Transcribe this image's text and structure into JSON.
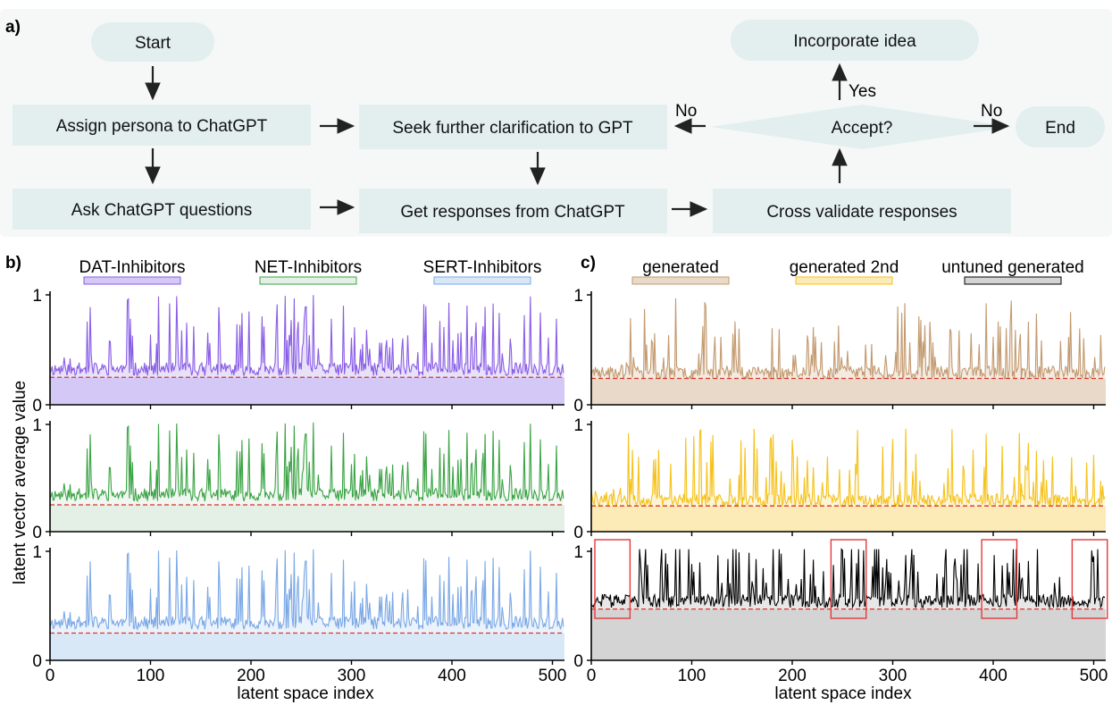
{
  "panel_labels": {
    "a": "a)",
    "b": "b)",
    "c": "c)"
  },
  "flowchart": {
    "start": "Start",
    "assign": "Assign persona to ChatGPT",
    "ask": "Ask ChatGPT questions",
    "seek": "Seek further clarification to GPT",
    "get": "Get responses from ChatGPT",
    "cross": "Cross validate responses",
    "accept": "Accept?",
    "incorporate": "Incorporate idea",
    "end": "End",
    "yes_label": "Yes",
    "no_left_label": "No",
    "no_right_label": "No"
  },
  "colors": {
    "flow_box": "#e3efef",
    "DAT": "#8a5de6",
    "NET": "#3aa444",
    "SERT": "#7aa8e6",
    "generated": "#c39a6f",
    "generated2": "#f5c21b",
    "untuned": "#000000",
    "threshold": "#d9342b",
    "highlight_box": "#e5383b"
  },
  "shared_labels": {
    "ylabel": "latent vector average value",
    "xlabel_b": "latent space index",
    "xlabel_c": "latent space index"
  },
  "chart_data": [
    {
      "panel": "b",
      "type": "area",
      "series_name": "DAT-Inhibitors",
      "x_range": [
        0,
        512
      ],
      "ylim": [
        0,
        1
      ],
      "y_ticks": [
        "0",
        "1"
      ],
      "threshold": 0.25,
      "baseline": 0.3,
      "fill": "#d4c8f5",
      "line": "#8a5de6",
      "seed": 11
    },
    {
      "panel": "b",
      "type": "area",
      "series_name": "NET-Inhibitors",
      "x_range": [
        0,
        512
      ],
      "ylim": [
        0,
        1
      ],
      "y_ticks": [
        "0",
        "1"
      ],
      "threshold": 0.25,
      "baseline": 0.32,
      "fill": "#e4efe6",
      "line": "#3aa444",
      "seed": 11
    },
    {
      "panel": "b",
      "type": "area",
      "series_name": "SERT-Inhibitors",
      "x_range": [
        0,
        512
      ],
      "ylim": [
        0,
        1
      ],
      "y_ticks": [
        "0",
        "1"
      ],
      "threshold": 0.25,
      "baseline": 0.32,
      "fill": "#d9e8f7",
      "line": "#7aa8e6",
      "seed": 11
    },
    {
      "panel": "c",
      "type": "area",
      "series_name": "generated",
      "x_range": [
        0,
        512
      ],
      "ylim": [
        0,
        1
      ],
      "y_ticks": [
        "0",
        "1"
      ],
      "threshold": 0.24,
      "baseline": 0.27,
      "fill": "#e9d9c8",
      "line": "#c39a6f",
      "seed": 23
    },
    {
      "panel": "c",
      "type": "area",
      "series_name": "generated 2nd",
      "x_range": [
        0,
        512
      ],
      "ylim": [
        0,
        1
      ],
      "y_ticks": [
        "0",
        "1"
      ],
      "threshold": 0.24,
      "baseline": 0.27,
      "fill": "#fcebb7",
      "line": "#f5c21b",
      "seed": 29
    },
    {
      "panel": "c",
      "type": "area",
      "series_name": "untuned generated",
      "x_range": [
        0,
        512
      ],
      "ylim": [
        0,
        1
      ],
      "y_ticks": [
        "0",
        "1"
      ],
      "threshold": 0.47,
      "baseline": 0.52,
      "fill": "#d4d4d4",
      "line": "#000000",
      "seed": 37,
      "highlight_ranges": [
        [
          0,
          35
        ],
        [
          235,
          270
        ],
        [
          385,
          420
        ],
        [
          475,
          510
        ]
      ]
    }
  ],
  "x_ticks": [
    "0",
    "100",
    "200",
    "300",
    "400",
    "500"
  ],
  "x_tick_values": [
    0,
    100,
    200,
    300,
    400,
    500
  ]
}
